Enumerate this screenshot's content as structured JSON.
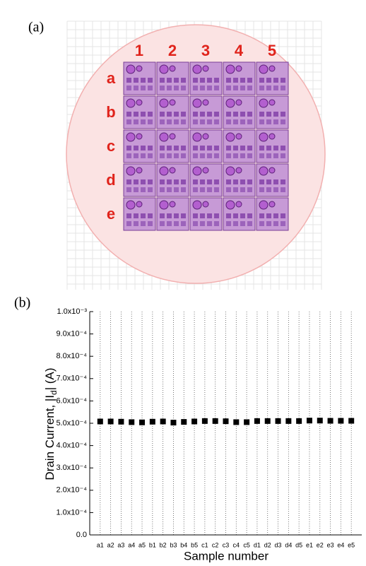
{
  "panel_a": {
    "label": "(a)",
    "columns": [
      "1",
      "2",
      "3",
      "4",
      "5"
    ],
    "rows": [
      "a",
      "b",
      "c",
      "d",
      "e"
    ]
  },
  "chart_data": {
    "type": "scatter",
    "panel_label": "(b)",
    "xlabel": "Sample number",
    "ylabel": {
      "text": "Drain Current, |I",
      "subscript": "d",
      "suffix": "| (A)"
    },
    "categories": [
      "a1",
      "a2",
      "a3",
      "a4",
      "a5",
      "b1",
      "b2",
      "b3",
      "b4",
      "b5",
      "c1",
      "c2",
      "c3",
      "c4",
      "c5",
      "d1",
      "d2",
      "d3",
      "d4",
      "d5",
      "e1",
      "e2",
      "e3",
      "e4",
      "e5"
    ],
    "values": [
      0.000508,
      0.000508,
      0.000507,
      0.000505,
      0.000504,
      0.000507,
      0.000508,
      0.000503,
      0.000506,
      0.000508,
      0.00051,
      0.00051,
      0.000509,
      0.000505,
      0.000505,
      0.00051,
      0.00051,
      0.00051,
      0.00051,
      0.00051,
      0.000512,
      0.000512,
      0.000511,
      0.000511,
      0.000511
    ],
    "color": "#000000",
    "ylim": [
      0,
      0.001
    ],
    "yticks": [
      {
        "value": 0,
        "label": "0.0"
      },
      {
        "value": 0.0001,
        "label": "1.0x10⁻⁴"
      },
      {
        "value": 0.0002,
        "label": "2.0x10⁻⁴"
      },
      {
        "value": 0.0003,
        "label": "3.0x10⁻⁴"
      },
      {
        "value": 0.0004,
        "label": "4.0x10⁻⁴"
      },
      {
        "value": 0.0005,
        "label": "5.0x10⁻⁴"
      },
      {
        "value": 0.0006,
        "label": "6.0x10⁻⁴"
      },
      {
        "value": 0.0007,
        "label": "7.0x10⁻⁴"
      },
      {
        "value": 0.0008,
        "label": "8.0x10⁻⁴"
      },
      {
        "value": 0.0009,
        "label": "9.0x10⁻⁴"
      },
      {
        "value": 0.001,
        "label": "1.0x10⁻³"
      }
    ],
    "grid": true
  }
}
